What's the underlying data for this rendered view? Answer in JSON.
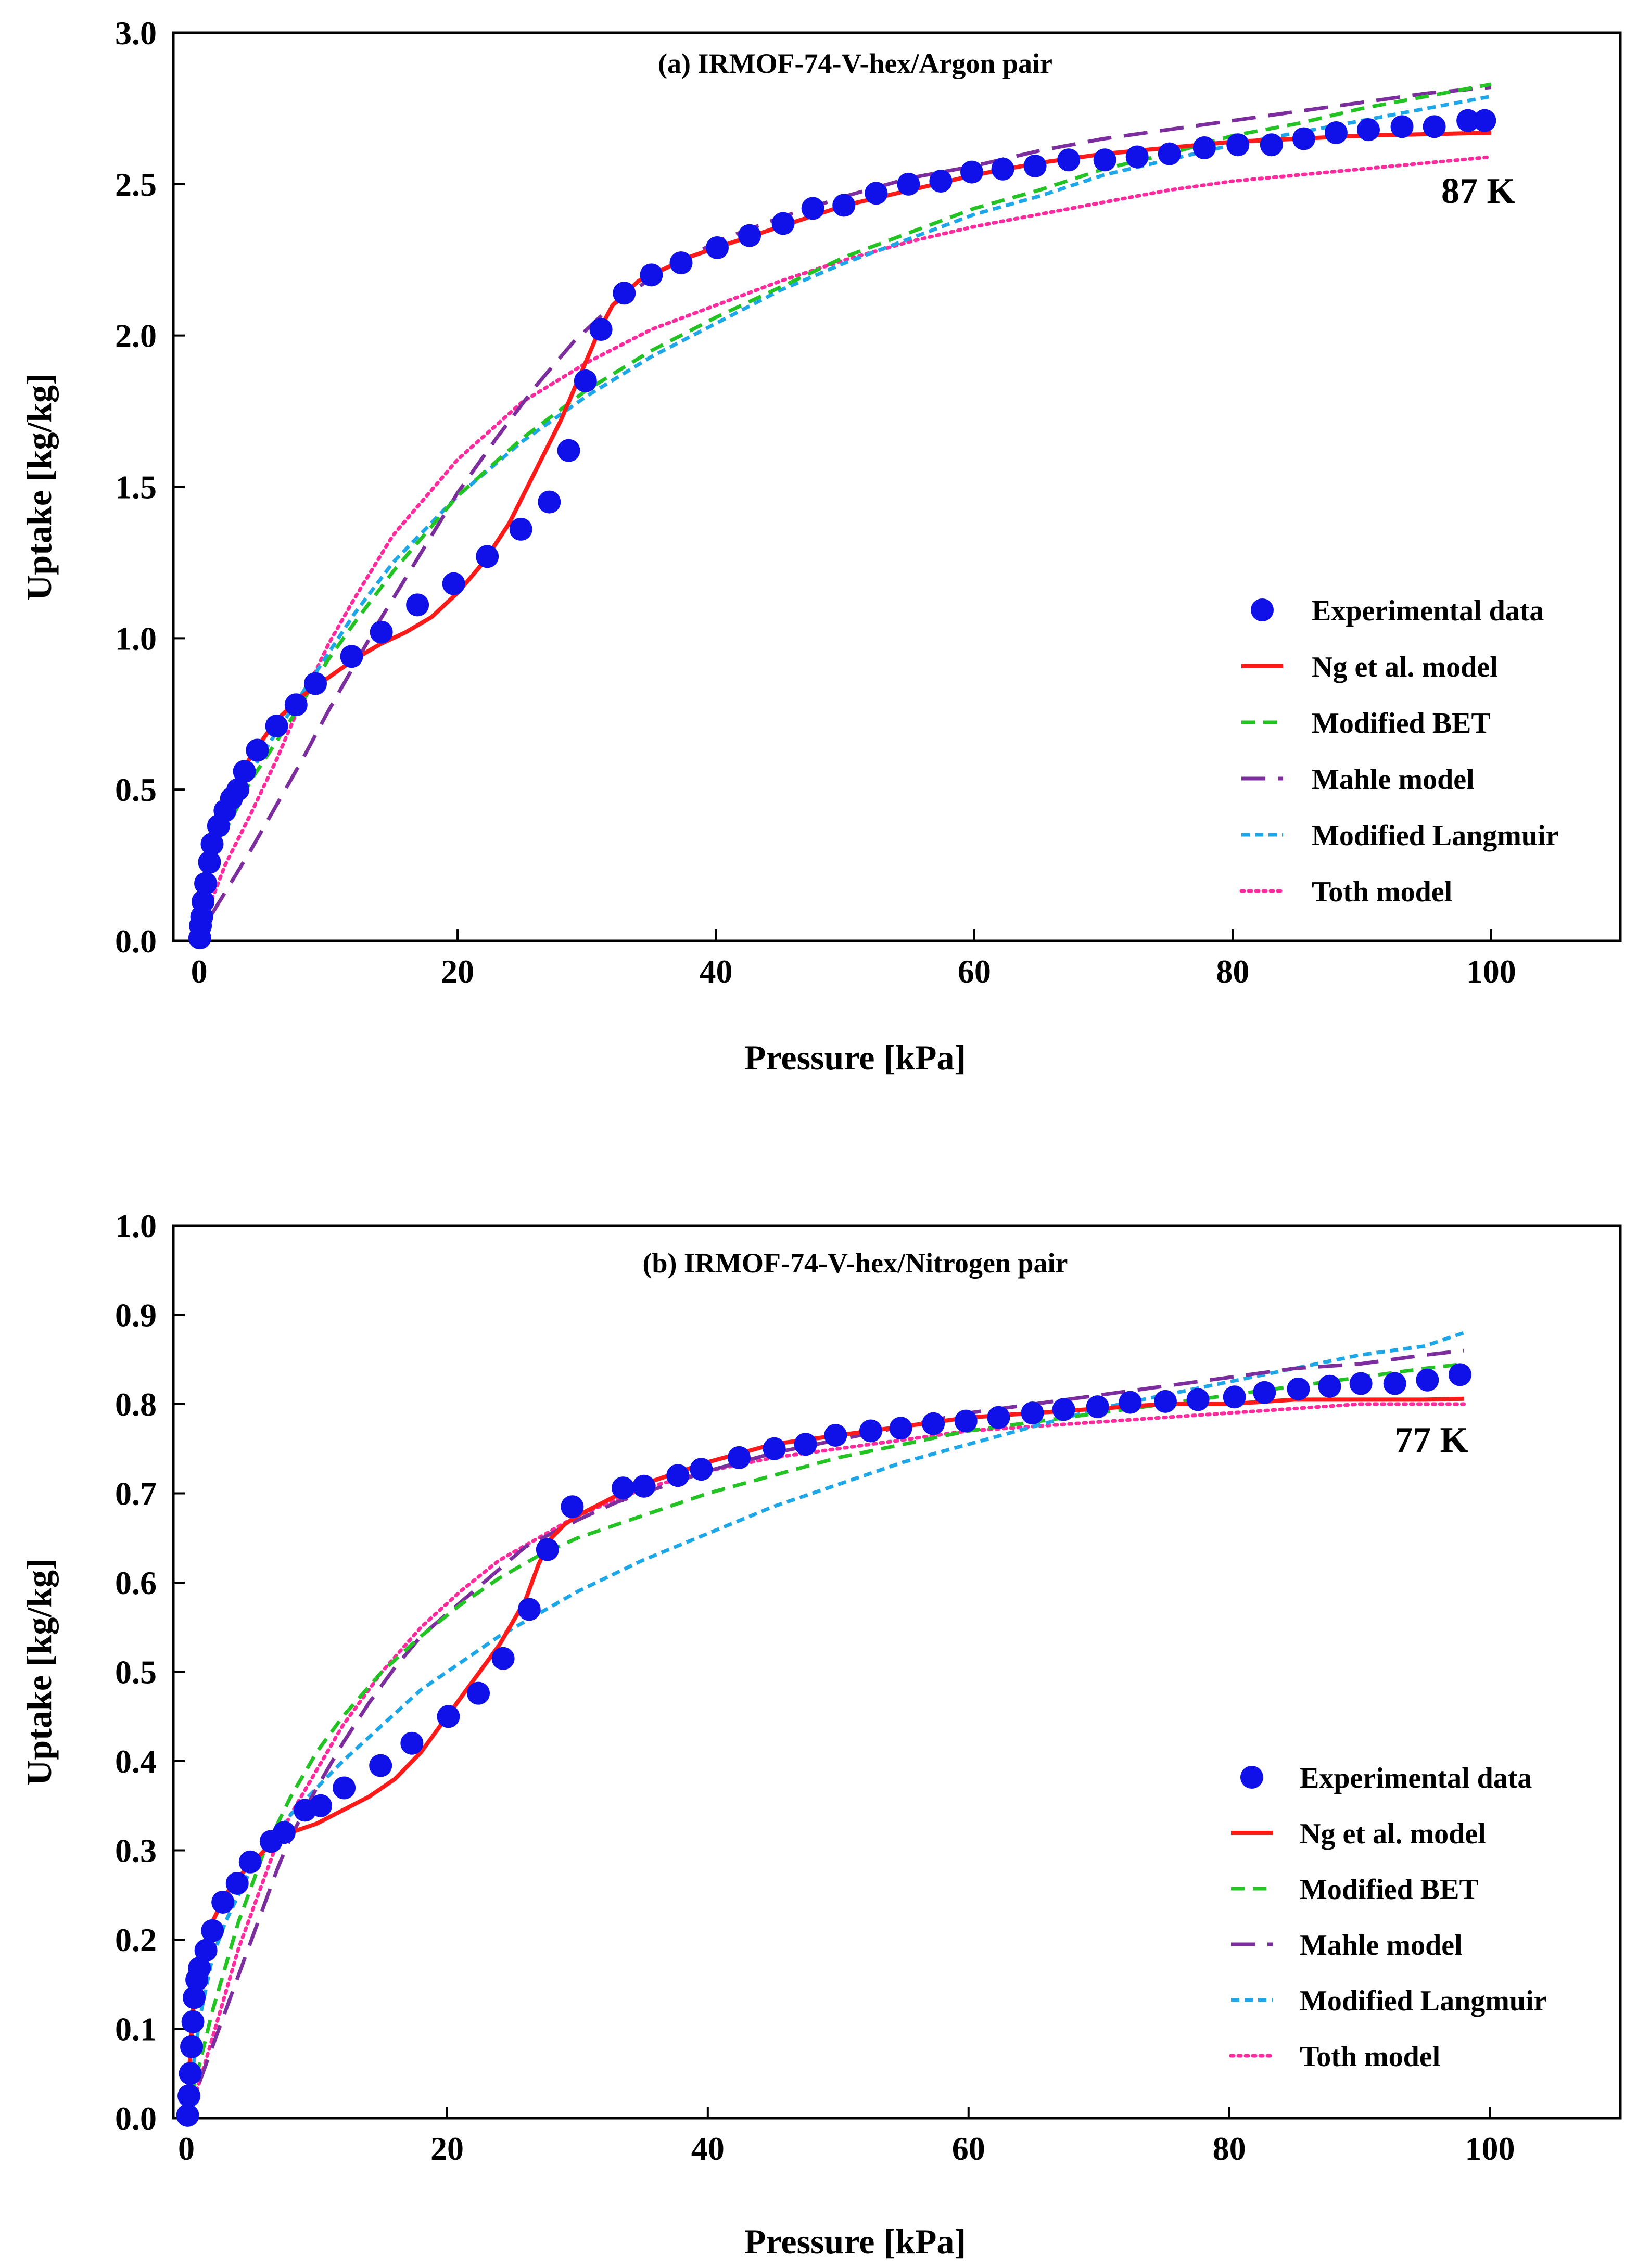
{
  "figure": {
    "colors": {
      "experimental": "#1010e8",
      "ng": "#ff1a1a",
      "bet": "#22c322",
      "mahle": "#7d2e9e",
      "langmuir": "#1ea7e8",
      "toth": "#ff2a9d",
      "axis": "#000000"
    }
  },
  "chart_data": [
    {
      "type": "scatter",
      "panel": "a",
      "title": "(a) IRMOF-74-V-hex/Argon pair",
      "xlabel": "Pressure [kPa]",
      "ylabel": "Uptake [kg/kg]",
      "annotation": "87 K",
      "xlim": [
        -2,
        110
      ],
      "ylim": [
        0,
        3.0
      ],
      "xticks": [
        0,
        20,
        40,
        60,
        80,
        100
      ],
      "xtick_labels": [
        "0",
        "20",
        "40",
        "60",
        "80",
        "100"
      ],
      "yticks": [
        0,
        0.5,
        1.0,
        1.5,
        2.0,
        2.5,
        3.0
      ],
      "ytick_labels": [
        "0.0",
        "0.5",
        "1.0",
        "1.5",
        "2.0",
        "2.5",
        "3.0"
      ],
      "legend_position": "lower-right",
      "series": [
        {
          "name": "Experimental data",
          "style": "marker",
          "color_key": "experimental",
          "x": [
            0.05,
            0.1,
            0.2,
            0.3,
            0.5,
            0.8,
            1.0,
            1.5,
            2.0,
            2.5,
            3.0,
            3.5,
            4.5,
            6.0,
            7.5,
            9.0,
            11.8,
            14.1,
            16.9,
            19.7,
            22.3,
            24.9,
            27.1,
            28.6,
            29.9,
            31.1,
            32.9,
            35.0,
            37.3,
            40.1,
            42.6,
            45.2,
            47.5,
            49.9,
            52.4,
            54.9,
            57.4,
            59.8,
            62.2,
            64.7,
            67.3,
            70.1,
            72.6,
            75.1,
            77.8,
            80.4,
            83.0,
            85.5,
            88.0,
            90.5,
            93.1,
            95.6,
            98.2,
            99.5
          ],
          "y": [
            0.01,
            0.05,
            0.08,
            0.13,
            0.19,
            0.26,
            0.32,
            0.38,
            0.43,
            0.47,
            0.5,
            0.56,
            0.63,
            0.71,
            0.78,
            0.85,
            0.94,
            1.02,
            1.11,
            1.18,
            1.27,
            1.36,
            1.45,
            1.62,
            1.85,
            2.02,
            2.14,
            2.2,
            2.24,
            2.29,
            2.33,
            2.37,
            2.42,
            2.43,
            2.47,
            2.5,
            2.51,
            2.54,
            2.55,
            2.56,
            2.58,
            2.58,
            2.59,
            2.6,
            2.62,
            2.63,
            2.63,
            2.65,
            2.67,
            2.68,
            2.69,
            2.69,
            2.71,
            2.71
          ]
        },
        {
          "name": "Ng et al. model",
          "style": "solid",
          "color_key": "ng",
          "x": [
            0,
            1,
            2,
            4,
            6,
            8,
            10,
            12,
            14,
            16,
            18,
            20,
            22,
            24,
            26,
            28,
            30,
            31,
            32,
            34,
            36,
            38,
            40,
            45,
            50,
            55,
            60,
            65,
            70,
            75,
            80,
            85,
            90,
            95,
            100
          ],
          "y": [
            0,
            0.34,
            0.45,
            0.61,
            0.73,
            0.81,
            0.87,
            0.93,
            0.98,
            1.02,
            1.07,
            1.15,
            1.25,
            1.38,
            1.55,
            1.72,
            1.92,
            2.02,
            2.1,
            2.18,
            2.22,
            2.26,
            2.29,
            2.36,
            2.43,
            2.48,
            2.53,
            2.57,
            2.6,
            2.62,
            2.64,
            2.65,
            2.66,
            2.665,
            2.67
          ]
        },
        {
          "name": "Modified BET",
          "style": "dashed",
          "color_key": "bet",
          "x": [
            0,
            0.5,
            1,
            2,
            4,
            6,
            8,
            10,
            12,
            15,
            20,
            25,
            30,
            35,
            40,
            45,
            50,
            55,
            60,
            65,
            70,
            75,
            80,
            85,
            90,
            95,
            100
          ],
          "y": [
            0,
            0.18,
            0.26,
            0.36,
            0.53,
            0.66,
            0.79,
            0.93,
            1.05,
            1.22,
            1.47,
            1.66,
            1.82,
            1.95,
            2.06,
            2.16,
            2.26,
            2.34,
            2.42,
            2.48,
            2.55,
            2.6,
            2.66,
            2.7,
            2.75,
            2.79,
            2.83
          ]
        },
        {
          "name": "Mahle model",
          "style": "longdash",
          "color_key": "mahle",
          "x": [
            1,
            2,
            4,
            6,
            8,
            10,
            12,
            14,
            17,
            20,
            23,
            26,
            29,
            32,
            35,
            38,
            40,
            45,
            50,
            55,
            60,
            65,
            70,
            75,
            80,
            85,
            90,
            95,
            100
          ],
          "y": [
            0.09,
            0.16,
            0.3,
            0.45,
            0.6,
            0.76,
            0.91,
            1.06,
            1.27,
            1.48,
            1.66,
            1.83,
            1.98,
            2.1,
            2.19,
            2.26,
            2.31,
            2.39,
            2.46,
            2.52,
            2.56,
            2.61,
            2.65,
            2.68,
            2.71,
            2.74,
            2.77,
            2.8,
            2.82
          ]
        },
        {
          "name": "Modified Langmuir",
          "style": "shortdash",
          "color_key": "langmuir",
          "x": [
            0,
            0.5,
            1,
            2,
            4,
            6,
            8,
            10,
            12,
            15,
            20,
            25,
            30,
            35,
            40,
            45,
            50,
            55,
            60,
            65,
            70,
            75,
            80,
            85,
            90,
            95,
            100
          ],
          "y": [
            0,
            0.2,
            0.28,
            0.4,
            0.56,
            0.69,
            0.82,
            0.95,
            1.08,
            1.25,
            1.47,
            1.65,
            1.8,
            1.93,
            2.04,
            2.15,
            2.24,
            2.32,
            2.4,
            2.46,
            2.53,
            2.58,
            2.63,
            2.67,
            2.71,
            2.75,
            2.79
          ]
        },
        {
          "name": "Toth model",
          "style": "dotted",
          "color_key": "toth",
          "x": [
            0,
            1,
            2,
            4,
            6,
            8,
            10,
            12,
            15,
            20,
            25,
            30,
            35,
            40,
            45,
            50,
            55,
            60,
            65,
            70,
            75,
            80,
            85,
            90,
            95,
            100
          ],
          "y": [
            0,
            0.14,
            0.25,
            0.42,
            0.6,
            0.8,
            0.98,
            1.13,
            1.34,
            1.59,
            1.78,
            1.91,
            2.02,
            2.1,
            2.18,
            2.25,
            2.31,
            2.36,
            2.4,
            2.44,
            2.48,
            2.51,
            2.53,
            2.55,
            2.57,
            2.59
          ]
        }
      ]
    },
    {
      "type": "scatter",
      "panel": "b",
      "title": "(b) IRMOF-74-V-hex/Nitrogen pair",
      "xlabel": "Pressure [kPa]",
      "ylabel": "Uptake [kg/kg]",
      "annotation": "77 K",
      "xlim": [
        -1,
        110
      ],
      "ylim": [
        0,
        1.0
      ],
      "xticks": [
        0,
        20,
        40,
        60,
        80,
        100
      ],
      "xtick_labels": [
        "0",
        "20",
        "40",
        "60",
        "80",
        "100"
      ],
      "yticks": [
        0,
        0.1,
        0.2,
        0.3,
        0.4,
        0.5,
        0.6,
        0.7,
        0.8,
        0.9,
        1.0
      ],
      "ytick_labels": [
        "0.0",
        "0.1",
        "0.2",
        "0.3",
        "0.4",
        "0.5",
        "0.6",
        "0.7",
        "0.8",
        "0.9",
        "1.0"
      ],
      "legend_position": "lower-right",
      "series": [
        {
          "name": "Experimental data",
          "style": "marker",
          "color_key": "experimental",
          "x": [
            0.1,
            0.2,
            0.3,
            0.4,
            0.5,
            0.6,
            0.8,
            1.0,
            1.5,
            2.0,
            2.8,
            3.9,
            4.9,
            6.5,
            7.5,
            9.1,
            10.3,
            12.1,
            14.9,
            17.3,
            20.1,
            22.4,
            24.3,
            26.3,
            27.7,
            29.6,
            33.5,
            35.1,
            37.7,
            39.5,
            42.4,
            45.1,
            47.5,
            49.8,
            52.5,
            54.8,
            57.3,
            59.8,
            62.3,
            64.9,
            67.3,
            69.9,
            72.4,
            75.1,
            77.6,
            80.4,
            82.7,
            85.3,
            87.7,
            90.1,
            92.7,
            95.2,
            97.7
          ],
          "y": [
            0.003,
            0.025,
            0.05,
            0.08,
            0.108,
            0.135,
            0.155,
            0.168,
            0.188,
            0.21,
            0.242,
            0.263,
            0.287,
            0.31,
            0.32,
            0.345,
            0.35,
            0.37,
            0.395,
            0.42,
            0.45,
            0.476,
            0.515,
            0.57,
            0.637,
            0.685,
            0.706,
            0.708,
            0.72,
            0.727,
            0.74,
            0.75,
            0.755,
            0.765,
            0.77,
            0.773,
            0.778,
            0.781,
            0.785,
            0.79,
            0.794,
            0.797,
            0.802,
            0.803,
            0.805,
            0.808,
            0.813,
            0.817,
            0.82,
            0.823,
            0.823,
            0.827,
            0.833
          ]
        },
        {
          "name": "Ng et al. model",
          "style": "solid",
          "color_key": "ng",
          "x": [
            0,
            0.5,
            1,
            2,
            3,
            4,
            5,
            6,
            7,
            8,
            10,
            12,
            14,
            16,
            18,
            20,
            22,
            24,
            26,
            27,
            28,
            29,
            30,
            32,
            34,
            36,
            40,
            45,
            50,
            55,
            60,
            65,
            70,
            75,
            80,
            85,
            90,
            95,
            98
          ],
          "y": [
            0,
            0.12,
            0.17,
            0.22,
            0.25,
            0.27,
            0.285,
            0.3,
            0.31,
            0.32,
            0.33,
            0.345,
            0.36,
            0.38,
            0.41,
            0.45,
            0.49,
            0.53,
            0.58,
            0.62,
            0.65,
            0.665,
            0.675,
            0.69,
            0.705,
            0.715,
            0.735,
            0.755,
            0.765,
            0.775,
            0.785,
            0.79,
            0.795,
            0.8,
            0.8,
            0.805,
            0.805,
            0.805,
            0.806
          ]
        },
        {
          "name": "Modified BET",
          "style": "dashed",
          "color_key": "bet",
          "x": [
            0,
            1,
            2,
            3,
            4,
            5,
            6,
            7,
            8,
            10,
            12,
            15,
            18,
            21,
            24,
            27,
            30,
            35,
            40,
            45,
            50,
            55,
            60,
            65,
            70,
            75,
            80,
            85,
            90,
            95,
            98
          ],
          "y": [
            0,
            0.06,
            0.12,
            0.17,
            0.22,
            0.26,
            0.3,
            0.33,
            0.36,
            0.41,
            0.45,
            0.5,
            0.54,
            0.575,
            0.605,
            0.63,
            0.65,
            0.675,
            0.7,
            0.72,
            0.74,
            0.755,
            0.77,
            0.78,
            0.79,
            0.8,
            0.81,
            0.82,
            0.83,
            0.84,
            0.845
          ]
        },
        {
          "name": "Mahle model",
          "style": "longdash",
          "color_key": "mahle",
          "x": [
            1,
            2,
            3,
            4,
            5,
            6,
            7,
            8,
            10,
            12,
            14,
            16,
            18,
            20,
            22,
            24,
            26,
            28,
            30,
            33,
            36,
            40,
            45,
            50,
            55,
            60,
            65,
            70,
            75,
            80,
            85,
            90,
            95,
            98
          ],
          "y": [
            0.04,
            0.08,
            0.12,
            0.16,
            0.2,
            0.24,
            0.28,
            0.315,
            0.37,
            0.42,
            0.465,
            0.505,
            0.54,
            0.565,
            0.59,
            0.615,
            0.64,
            0.655,
            0.67,
            0.69,
            0.705,
            0.725,
            0.745,
            0.76,
            0.775,
            0.79,
            0.8,
            0.81,
            0.82,
            0.83,
            0.84,
            0.845,
            0.855,
            0.86
          ]
        },
        {
          "name": "Modified Langmuir",
          "style": "shortdash",
          "color_key": "langmuir",
          "x": [
            0,
            1,
            2,
            3,
            4,
            5,
            6,
            7,
            8,
            10,
            12,
            15,
            18,
            21,
            24,
            27,
            30,
            35,
            40,
            45,
            50,
            55,
            60,
            65,
            70,
            75,
            80,
            85,
            90,
            95,
            98
          ],
          "y": [
            0,
            0.11,
            0.18,
            0.22,
            0.25,
            0.28,
            0.3,
            0.32,
            0.34,
            0.37,
            0.4,
            0.44,
            0.48,
            0.51,
            0.54,
            0.565,
            0.59,
            0.625,
            0.655,
            0.685,
            0.71,
            0.735,
            0.755,
            0.775,
            0.795,
            0.81,
            0.825,
            0.84,
            0.855,
            0.865,
            0.88
          ]
        },
        {
          "name": "Toth model",
          "style": "dotted",
          "color_key": "toth",
          "x": [
            0,
            1,
            2,
            3,
            4,
            5,
            6,
            7,
            8,
            10,
            12,
            15,
            18,
            21,
            24,
            27,
            30,
            35,
            40,
            45,
            50,
            55,
            60,
            65,
            70,
            75,
            80,
            85,
            90,
            95,
            98
          ],
          "y": [
            0,
            0.04,
            0.09,
            0.14,
            0.19,
            0.23,
            0.27,
            0.31,
            0.34,
            0.39,
            0.44,
            0.5,
            0.55,
            0.59,
            0.625,
            0.65,
            0.675,
            0.705,
            0.725,
            0.74,
            0.75,
            0.76,
            0.77,
            0.775,
            0.78,
            0.785,
            0.79,
            0.795,
            0.8,
            0.8,
            0.8
          ]
        }
      ]
    }
  ]
}
